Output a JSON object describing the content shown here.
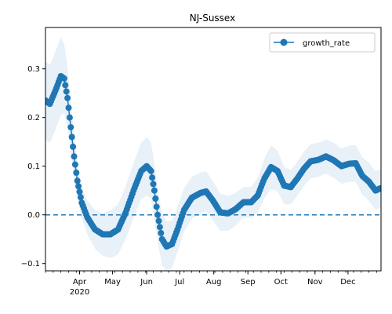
{
  "chart_data": {
    "type": "line",
    "title": "NJ-Sussex",
    "xlabel": "",
    "ylabel": "",
    "x_range": [
      "2020-03-01",
      "2020-12-31"
    ],
    "ylim": [
      -0.115,
      0.385
    ],
    "y_ticks": [
      -0.1,
      0.0,
      0.1,
      0.2,
      0.3
    ],
    "y_tick_labels": [
      "−0.1",
      "0.0",
      "0.1",
      "0.2",
      "0.3"
    ],
    "x_ticks": [
      {
        "date": "2020-04-01",
        "label": "Apr",
        "sublabel": "2020"
      },
      {
        "date": "2020-05-01",
        "label": "May",
        "sublabel": ""
      },
      {
        "date": "2020-06-01",
        "label": "Jun",
        "sublabel": ""
      },
      {
        "date": "2020-07-01",
        "label": "Jul",
        "sublabel": ""
      },
      {
        "date": "2020-08-01",
        "label": "Aug",
        "sublabel": ""
      },
      {
        "date": "2020-09-01",
        "label": "Sep",
        "sublabel": ""
      },
      {
        "date": "2020-10-01",
        "label": "Oct",
        "sublabel": ""
      },
      {
        "date": "2020-11-01",
        "label": "Nov",
        "sublabel": ""
      },
      {
        "date": "2020-12-01",
        "label": "Dec",
        "sublabel": ""
      }
    ],
    "grid": false,
    "legend": {
      "position": "top-right",
      "entries": [
        "growth_rate"
      ]
    },
    "reference_line": {
      "y": 0.0,
      "style": "dashed"
    },
    "colors": {
      "series": "#1f77b4",
      "band": "#e8f0f8"
    },
    "series": [
      {
        "name": "growth_rate",
        "marker": "circle",
        "points": [
          [
            "2020-03-01",
            0.235
          ],
          [
            "2020-03-05",
            0.228
          ],
          [
            "2020-03-10",
            0.255
          ],
          [
            "2020-03-15",
            0.285
          ],
          [
            "2020-03-18",
            0.28
          ],
          [
            "2020-03-21",
            0.24
          ],
          [
            "2020-03-24",
            0.18
          ],
          [
            "2020-03-27",
            0.12
          ],
          [
            "2020-03-30",
            0.07
          ],
          [
            "2020-04-03",
            0.025
          ],
          [
            "2020-04-08",
            -0.005
          ],
          [
            "2020-04-15",
            -0.03
          ],
          [
            "2020-04-22",
            -0.04
          ],
          [
            "2020-04-29",
            -0.04
          ],
          [
            "2020-05-06",
            -0.03
          ],
          [
            "2020-05-13",
            0.005
          ],
          [
            "2020-05-20",
            0.05
          ],
          [
            "2020-05-27",
            0.09
          ],
          [
            "2020-06-01",
            0.1
          ],
          [
            "2020-06-05",
            0.09
          ],
          [
            "2020-06-08",
            0.05
          ],
          [
            "2020-06-11",
            0.0
          ],
          [
            "2020-06-15",
            -0.05
          ],
          [
            "2020-06-19",
            -0.065
          ],
          [
            "2020-06-24",
            -0.06
          ],
          [
            "2020-06-29",
            -0.03
          ],
          [
            "2020-07-05",
            0.01
          ],
          [
            "2020-07-12",
            0.035
          ],
          [
            "2020-07-20",
            0.045
          ],
          [
            "2020-07-25",
            0.048
          ],
          [
            "2020-07-31",
            0.03
          ],
          [
            "2020-08-07",
            0.005
          ],
          [
            "2020-08-14",
            0.003
          ],
          [
            "2020-08-21",
            0.012
          ],
          [
            "2020-08-28",
            0.026
          ],
          [
            "2020-09-04",
            0.026
          ],
          [
            "2020-09-10",
            0.04
          ],
          [
            "2020-09-16",
            0.075
          ],
          [
            "2020-09-22",
            0.098
          ],
          [
            "2020-09-28",
            0.09
          ],
          [
            "2020-10-04",
            0.06
          ],
          [
            "2020-10-10",
            0.057
          ],
          [
            "2020-10-16",
            0.075
          ],
          [
            "2020-10-22",
            0.095
          ],
          [
            "2020-10-28",
            0.11
          ],
          [
            "2020-11-04",
            0.113
          ],
          [
            "2020-11-11",
            0.12
          ],
          [
            "2020-11-18",
            0.112
          ],
          [
            "2020-11-25",
            0.1
          ],
          [
            "2020-12-02",
            0.105
          ],
          [
            "2020-12-08",
            0.106
          ],
          [
            "2020-12-14",
            0.08
          ],
          [
            "2020-12-20",
            0.068
          ],
          [
            "2020-12-26",
            0.05
          ],
          [
            "2020-12-31",
            0.055
          ]
        ],
        "band_halfwidth": [
          [
            "2020-03-01",
            0.08
          ],
          [
            "2020-03-15",
            0.08
          ],
          [
            "2020-04-01",
            0.03
          ],
          [
            "2020-05-01",
            0.05
          ],
          [
            "2020-06-01",
            0.06
          ],
          [
            "2020-07-01",
            0.045
          ],
          [
            "2020-08-01",
            0.04
          ],
          [
            "2020-09-01",
            0.03
          ],
          [
            "2020-09-22",
            0.045
          ],
          [
            "2020-10-10",
            0.035
          ],
          [
            "2020-11-10",
            0.035
          ],
          [
            "2020-12-31",
            0.04
          ]
        ]
      }
    ]
  }
}
